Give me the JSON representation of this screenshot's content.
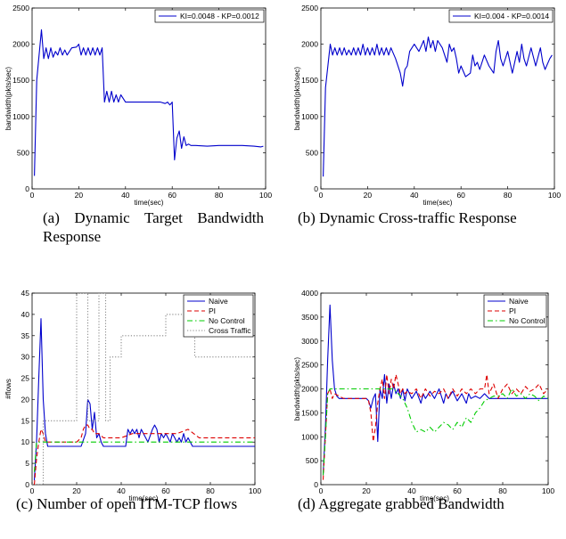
{
  "chart_data": [
    {
      "id": "a",
      "type": "line",
      "caption": "(a) Dynamic Target Bandwidth Response",
      "xlabel": "time(sec)",
      "ylabel": "bandwidth(pkts/sec)",
      "xlim": [
        0,
        100
      ],
      "ylim": [
        0,
        2500
      ],
      "xticks": [
        0,
        20,
        40,
        60,
        80,
        100
      ],
      "yticks": [
        0,
        500,
        1000,
        1500,
        2000,
        2500
      ],
      "legend_position": "top-right",
      "series": [
        {
          "name": "KI=0.0048 - KP=0.0012",
          "color": "#0000cc",
          "dash": "",
          "x": [
            1,
            2,
            4,
            5,
            6,
            7,
            8,
            9,
            10,
            11,
            12,
            13,
            14,
            15,
            17,
            19,
            20,
            21,
            22,
            23,
            24,
            25,
            26,
            27,
            28,
            29,
            30,
            31,
            32,
            33,
            34,
            35,
            36,
            37,
            38,
            40,
            45,
            50,
            55,
            57,
            58,
            59,
            60,
            61,
            62,
            63,
            64,
            65,
            66,
            67,
            68,
            70,
            75,
            80,
            85,
            90,
            95,
            98,
            99
          ],
          "y": [
            180,
            1500,
            2200,
            1800,
            1950,
            1800,
            1950,
            1820,
            1900,
            1850,
            1950,
            1850,
            1920,
            1850,
            1950,
            1960,
            2000,
            1850,
            1950,
            1850,
            1950,
            1850,
            1950,
            1850,
            1950,
            1850,
            1950,
            1200,
            1350,
            1200,
            1350,
            1200,
            1300,
            1200,
            1300,
            1200,
            1200,
            1200,
            1200,
            1180,
            1200,
            1160,
            1200,
            400,
            700,
            800,
            560,
            720,
            600,
            620,
            600,
            600,
            590,
            600,
            600,
            600,
            590,
            580,
            590
          ]
        }
      ]
    },
    {
      "id": "b",
      "type": "line",
      "caption": "(b) Dynamic Cross-traffic Response",
      "xlabel": "time(sec)",
      "ylabel": "bandwidth(pkts/sec)",
      "xlim": [
        0,
        100
      ],
      "ylim": [
        0,
        2500
      ],
      "xticks": [
        0,
        20,
        40,
        60,
        80,
        100
      ],
      "yticks": [
        0,
        500,
        1000,
        1500,
        2000,
        2500
      ],
      "legend_position": "top-right",
      "series": [
        {
          "name": "KI=0.004 - KP=0.0014",
          "color": "#0000cc",
          "dash": "",
          "x": [
            1,
            2,
            4,
            5,
            6,
            7,
            8,
            9,
            10,
            11,
            12,
            13,
            14,
            15,
            16,
            17,
            18,
            19,
            20,
            21,
            22,
            23,
            24,
            25,
            26,
            27,
            28,
            29,
            30,
            32,
            34,
            35,
            36,
            37,
            38,
            40,
            42,
            44,
            45,
            46,
            47,
            48,
            49,
            50,
            52,
            54,
            55,
            56,
            57,
            58,
            59,
            60,
            62,
            64,
            65,
            66,
            67,
            68,
            70,
            72,
            74,
            75,
            76,
            77,
            78,
            80,
            82,
            84,
            85,
            86,
            87,
            88,
            90,
            92,
            94,
            95,
            96,
            98,
            99
          ],
          "y": [
            170,
            1400,
            2000,
            1850,
            1950,
            1850,
            1950,
            1850,
            1950,
            1850,
            1920,
            1850,
            1950,
            1850,
            1950,
            1850,
            2000,
            1850,
            1950,
            1850,
            1950,
            1850,
            2000,
            1850,
            1950,
            1850,
            1950,
            1850,
            1950,
            1800,
            1600,
            1420,
            1650,
            1700,
            1900,
            2000,
            1900,
            2050,
            1900,
            2100,
            1950,
            2050,
            1900,
            2050,
            1950,
            1750,
            2000,
            1900,
            1950,
            1800,
            1600,
            1700,
            1550,
            1600,
            1850,
            1700,
            1750,
            1650,
            1850,
            1700,
            1600,
            1900,
            2050,
            1800,
            1700,
            1900,
            1600,
            1900,
            1750,
            2000,
            1800,
            1700,
            1950,
            1700,
            1950,
            1750,
            1650,
            1800,
            1850
          ]
        }
      ]
    },
    {
      "id": "c",
      "type": "line",
      "caption": "(c) Number of open ITM-TCP flows",
      "xlabel": "time(sec)",
      "ylabel": "#flows",
      "xlim": [
        0,
        100
      ],
      "ylim": [
        0,
        45
      ],
      "xticks": [
        0,
        20,
        40,
        60,
        80,
        100
      ],
      "yticks": [
        0,
        5,
        10,
        15,
        20,
        25,
        30,
        35,
        40,
        45
      ],
      "legend_position": "top-right",
      "series": [
        {
          "name": "Naive",
          "color": "#0000cc",
          "dash": "",
          "x": [
            1,
            2,
            3,
            4,
            5,
            6,
            7,
            10,
            15,
            20,
            22,
            24,
            25,
            26,
            27,
            28,
            29,
            30,
            31,
            32,
            33,
            35,
            40,
            42,
            43,
            44,
            45,
            46,
            47,
            48,
            49,
            50,
            52,
            54,
            55,
            56,
            57,
            58,
            59,
            60,
            62,
            63,
            64,
            65,
            66,
            67,
            68,
            69,
            70,
            72,
            75,
            80,
            90,
            100
          ],
          "y": [
            1,
            10,
            25,
            39,
            20,
            12,
            9,
            9,
            9,
            9,
            9,
            12,
            20,
            19,
            13,
            17,
            11,
            12,
            10,
            9,
            9,
            9,
            9,
            9,
            13,
            12,
            13,
            12,
            13,
            11,
            13,
            12,
            10,
            13,
            14,
            13,
            10,
            12,
            11,
            12,
            10,
            12,
            11,
            10,
            11,
            10,
            12,
            10,
            11,
            9,
            9,
            9,
            9,
            9
          ]
        },
        {
          "name": "PI",
          "color": "#dd0000",
          "dash": "5,3",
          "x": [
            1,
            2,
            3,
            4,
            5,
            6,
            8,
            10,
            15,
            20,
            22,
            23,
            24,
            25,
            26,
            27,
            28,
            30,
            32,
            35,
            40,
            45,
            50,
            55,
            60,
            65,
            70,
            75,
            80,
            90,
            100
          ],
          "y": [
            0,
            6,
            10,
            13,
            12,
            10,
            10,
            10,
            10,
            10,
            11,
            13,
            14,
            14,
            13,
            13,
            12,
            12,
            11,
            11,
            11,
            12,
            12,
            12,
            12,
            12,
            13,
            11,
            11,
            11,
            11
          ]
        },
        {
          "name": "No Control",
          "color": "#00cc00",
          "dash": "6,3,1.5,3",
          "x": [
            1,
            2,
            3,
            5,
            10,
            20,
            30,
            40,
            50,
            60,
            70,
            80,
            90,
            100
          ],
          "y": [
            3,
            10,
            10,
            10,
            10,
            10,
            10,
            10,
            10,
            10,
            10,
            10,
            10,
            10
          ]
        },
        {
          "name": "Cross Traffic",
          "color": "#888888",
          "dash": "1.2,2",
          "x": [
            0,
            5,
            5,
            10,
            10,
            20,
            20,
            25,
            25,
            30,
            30,
            33,
            33,
            35,
            35,
            40,
            40,
            60,
            60,
            63,
            63,
            73,
            73,
            100
          ],
          "y": [
            0,
            0,
            15,
            15,
            15,
            15,
            45,
            45,
            15,
            15,
            45,
            45,
            15,
            15,
            30,
            30,
            35,
            35,
            40,
            40,
            40,
            40,
            30,
            30
          ]
        }
      ]
    },
    {
      "id": "d",
      "type": "line",
      "caption": "(d) Aggregate grabbed Bandwidth",
      "xlabel": "time(sec)",
      "ylabel": "bandwidth(pkts/sec)",
      "xlim": [
        0,
        100
      ],
      "ylim": [
        0,
        4000
      ],
      "xticks": [
        0,
        20,
        40,
        60,
        80,
        100
      ],
      "yticks": [
        0,
        500,
        1000,
        1500,
        2000,
        2500,
        3000,
        3500,
        4000
      ],
      "legend_position": "top-right",
      "series": [
        {
          "name": "Naive",
          "color": "#0000cc",
          "dash": "",
          "x": [
            1,
            2,
            3,
            4,
            5,
            6,
            7,
            8,
            10,
            15,
            20,
            21,
            22,
            23,
            24,
            25,
            26,
            27,
            28,
            29,
            30,
            31,
            32,
            33,
            34,
            35,
            36,
            37,
            38,
            40,
            42,
            44,
            45,
            46,
            48,
            50,
            52,
            54,
            55,
            56,
            58,
            60,
            62,
            64,
            65,
            66,
            68,
            70,
            72,
            74,
            75,
            80,
            85,
            90,
            95,
            100
          ],
          "y": [
            200,
            1200,
            2600,
            3750,
            2600,
            2000,
            1850,
            1800,
            1800,
            1800,
            1800,
            1750,
            1600,
            1800,
            1900,
            900,
            2000,
            1800,
            2300,
            1700,
            2100,
            1800,
            2100,
            1900,
            2000,
            1800,
            2000,
            1750,
            2000,
            1800,
            1950,
            1700,
            1900,
            1800,
            1950,
            1800,
            2000,
            1700,
            1900,
            1800,
            1950,
            1750,
            1900,
            1700,
            1900,
            1800,
            1850,
            1800,
            1900,
            1800,
            1800,
            1800,
            1800,
            1800,
            1800,
            1800
          ]
        },
        {
          "name": "PI",
          "color": "#dd0000",
          "dash": "5,3",
          "x": [
            1,
            2,
            3,
            4,
            5,
            6,
            8,
            10,
            15,
            20,
            21,
            22,
            23,
            24,
            25,
            26,
            27,
            28,
            29,
            30,
            31,
            32,
            33,
            34,
            35,
            36,
            37,
            38,
            40,
            42,
            44,
            46,
            48,
            50,
            52,
            54,
            56,
            58,
            60,
            62,
            64,
            66,
            68,
            70,
            72,
            73,
            74,
            76,
            78,
            80,
            82,
            84,
            86,
            88,
            90,
            92,
            94,
            96,
            98,
            100
          ],
          "y": [
            100,
            1000,
            1900,
            2000,
            1800,
            1900,
            1850,
            1800,
            1800,
            1800,
            1750,
            1500,
            900,
            1200,
            1700,
            2000,
            2200,
            1800,
            2300,
            1900,
            2200,
            2000,
            2300,
            2100,
            1900,
            2000,
            1900,
            1950,
            1900,
            2000,
            1800,
            2000,
            1850,
            1950,
            1900,
            2000,
            1800,
            2000,
            1850,
            2000,
            1900,
            2000,
            1900,
            2000,
            2000,
            2300,
            1900,
            2100,
            1800,
            2000,
            2100,
            1900,
            2000,
            1900,
            2050,
            1950,
            2000,
            2100,
            1900,
            2000
          ]
        },
        {
          "name": "No Control",
          "color": "#00cc00",
          "dash": "6,3,1.5,3",
          "x": [
            1,
            2,
            3,
            4,
            5,
            6,
            8,
            10,
            15,
            20,
            22,
            24,
            26,
            28,
            30,
            32,
            34,
            36,
            38,
            40,
            42,
            44,
            46,
            48,
            50,
            52,
            54,
            56,
            58,
            60,
            62,
            64,
            66,
            68,
            70,
            72,
            74,
            76,
            78,
            80,
            82,
            84,
            86,
            88,
            90,
            92,
            94,
            96,
            98,
            100
          ],
          "y": [
            200,
            1000,
            1900,
            2000,
            2000,
            2000,
            2000,
            2000,
            2000,
            2000,
            2000,
            2000,
            2000,
            2000,
            2000,
            2000,
            1900,
            1800,
            1600,
            1300,
            1100,
            1150,
            1100,
            1200,
            1100,
            1200,
            1300,
            1250,
            1150,
            1300,
            1200,
            1400,
            1300,
            1500,
            1600,
            1750,
            1800,
            1850,
            1850,
            1900,
            1800,
            2000,
            1850,
            1900,
            1800,
            1900,
            1850,
            1750,
            1850,
            1800
          ]
        }
      ]
    }
  ]
}
